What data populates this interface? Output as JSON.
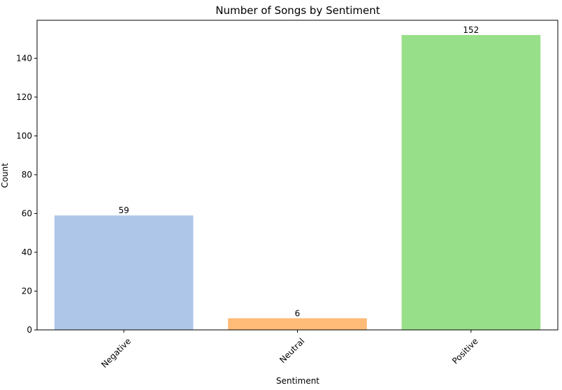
{
  "chart_data": {
    "type": "bar",
    "title": "Number of Songs by Sentiment",
    "xlabel": "Sentiment",
    "ylabel": "Count",
    "categories": [
      "Negative",
      "Neutral",
      "Positive"
    ],
    "values": [
      59,
      6,
      152
    ],
    "data_labels": [
      "59",
      "6",
      "152"
    ],
    "colors": [
      "#aec7e8",
      "#ffbb78",
      "#98df8a"
    ],
    "ylim": [
      0,
      159.6
    ],
    "yticks": [
      0,
      20,
      40,
      60,
      80,
      100,
      120,
      140
    ],
    "ytick_labels": [
      "0",
      "20",
      "40",
      "60",
      "80",
      "100",
      "120",
      "140"
    ],
    "x_tick_rotation": 45,
    "grid": false,
    "legend": false
  }
}
